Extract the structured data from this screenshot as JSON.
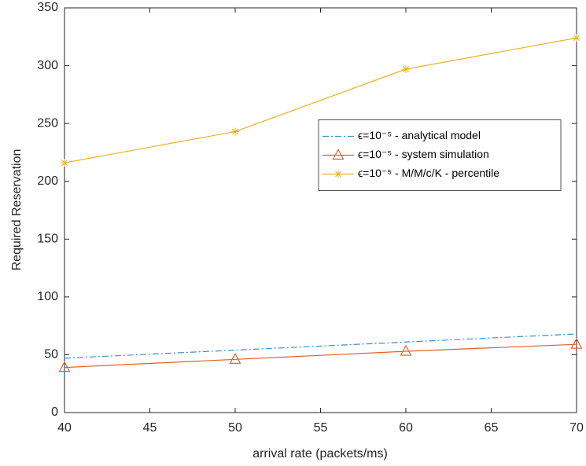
{
  "chart_data": {
    "type": "line",
    "x_label": "arrival rate (packets/ms)",
    "y_label": "Required Reservation",
    "x": [
      40,
      50,
      60,
      70
    ],
    "series": [
      {
        "name": "ϵ=10⁻⁵ - analytical model",
        "color": "#3a8fd0",
        "dash": "dashdot",
        "marker": "none",
        "values": [
          47,
          54,
          61,
          68
        ]
      },
      {
        "name": "ϵ=10⁻⁵ - system simulation",
        "color": "#e0602a",
        "dash": "solid",
        "marker": "triangle",
        "values": [
          39,
          46,
          53,
          59
        ]
      },
      {
        "name": "ϵ=10⁻⁵ - M/M/c/K - percentile",
        "color": "#edb120",
        "dash": "solid",
        "marker": "asterisk",
        "values": [
          216,
          243,
          297,
          324
        ]
      }
    ],
    "xlim": [
      40,
      70
    ],
    "xticks": [
      40,
      45,
      50,
      55,
      60,
      65,
      70
    ],
    "ylim": [
      0,
      350
    ],
    "yticks": [
      0,
      50,
      100,
      150,
      200,
      250,
      300,
      350
    ],
    "grid": false,
    "legend": "east"
  }
}
